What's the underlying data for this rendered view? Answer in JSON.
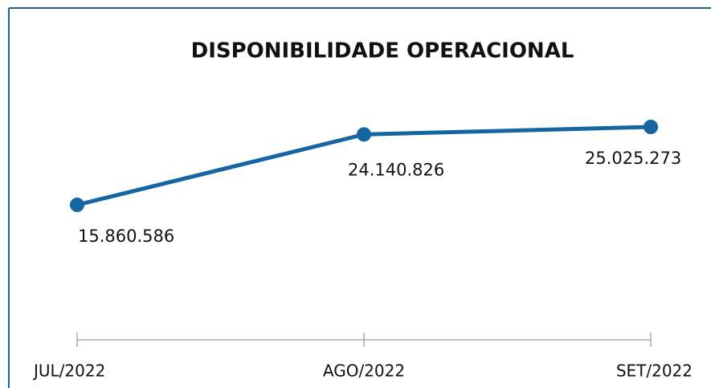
{
  "chart_data": {
    "type": "line",
    "title": "DISPONIBILIDADE OPERACIONAL",
    "categories": [
      "JUL/2022",
      "AGO/2022",
      "SET/2022"
    ],
    "series": [
      {
        "name": "Disponibilidade",
        "color": "#1565a3",
        "values": [
          15860586,
          24140826,
          25025273
        ],
        "value_labels": [
          "15.860.586",
          "24.140.826",
          "25.025.273"
        ]
      }
    ]
  }
}
